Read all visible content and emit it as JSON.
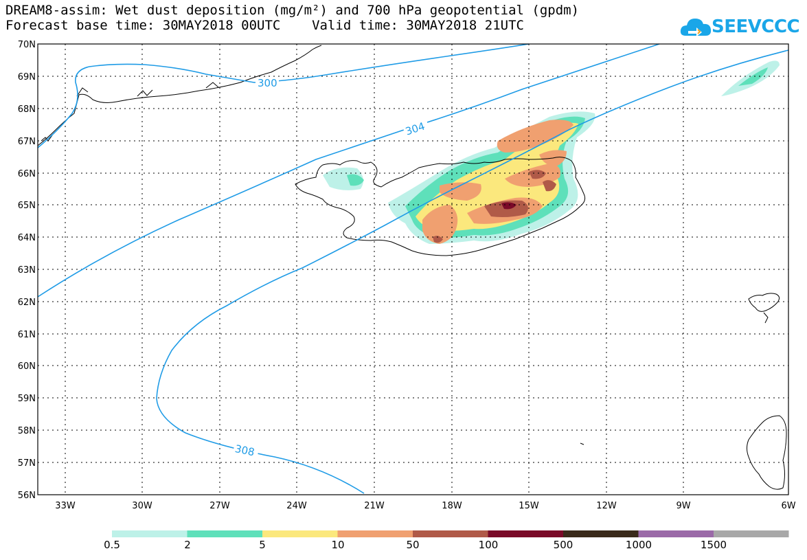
{
  "title_line1": "DREAM8-assim: Wet dust deposition (mg/m²) and 700 hPa geopotential (gpdm)",
  "title_line2": "Forecast base time: 30MAY2018 00UTC    Valid time: 30MAY2018 21UTC",
  "logo_text": "SEEVCCC",
  "logo_icon": "cloud-icon",
  "lon_labels": [
    "33W",
    "30W",
    "27W",
    "24W",
    "21W",
    "18W",
    "15W",
    "12W",
    "9W",
    "6W"
  ],
  "lat_labels": [
    "70N",
    "69N",
    "68N",
    "67N",
    "66N",
    "65N",
    "64N",
    "63N",
    "62N",
    "61N",
    "60N",
    "59N",
    "58N",
    "57N",
    "56N"
  ],
  "contours": [
    {
      "label": "300"
    },
    {
      "label": "304"
    },
    {
      "label": "308"
    }
  ],
  "legend": {
    "colors": [
      "#bdf1e8",
      "#5ee0ba",
      "#fbe87d",
      "#f0a070",
      "#b05a48",
      "#7a0a28",
      "#3a2a1a",
      "#9b6aa8",
      "#a8a8a8"
    ],
    "labels": [
      "0.5",
      "2",
      "5",
      "10",
      "50",
      "100",
      "500",
      "1000",
      "1500"
    ]
  },
  "colors": {
    "contour": "#1e9be6",
    "coast": "#000000",
    "grid": "#000000"
  }
}
